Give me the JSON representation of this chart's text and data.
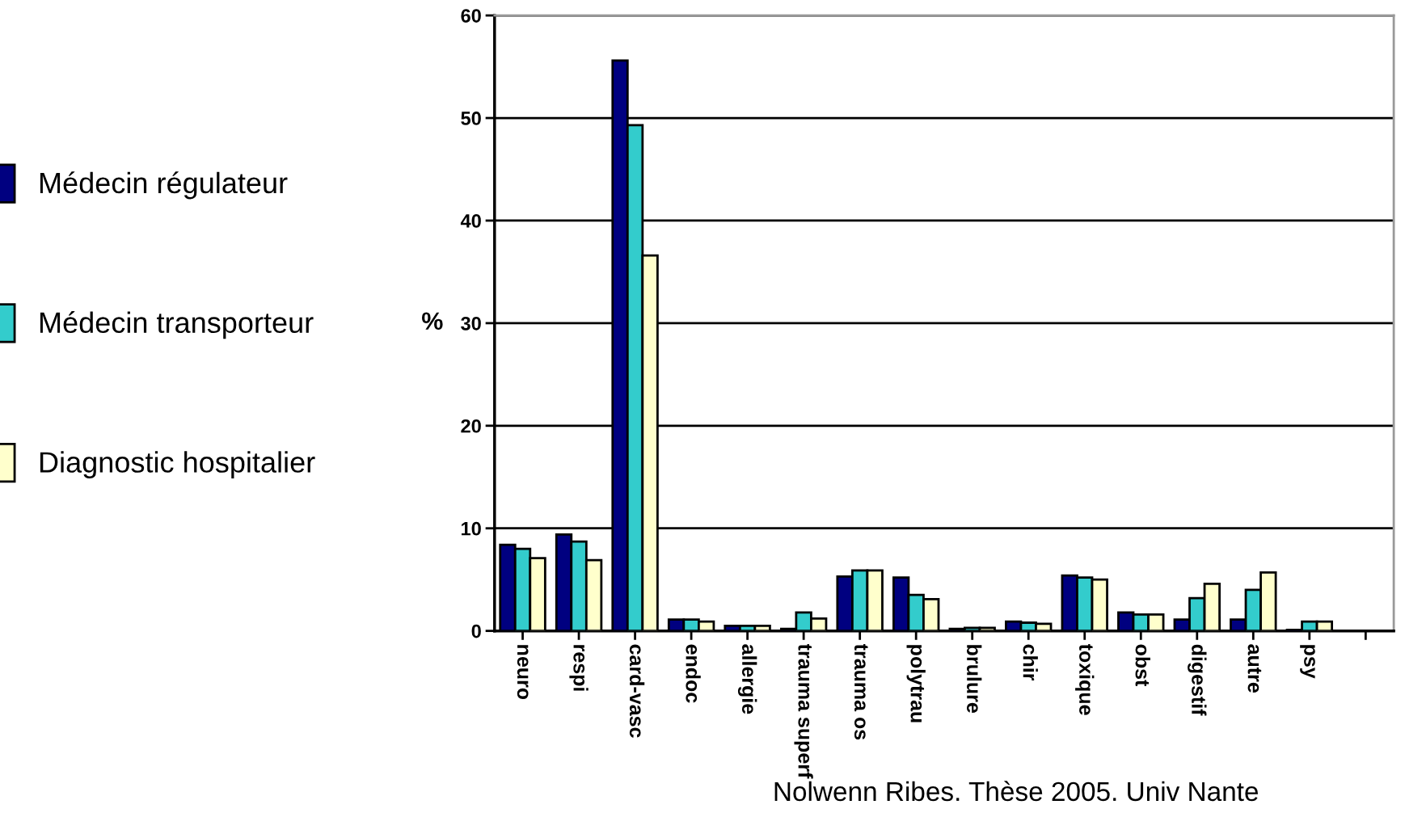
{
  "chart_data": {
    "type": "bar",
    "ylabel": "%",
    "categories": [
      "neuro",
      "respi",
      "card-vasc",
      "endoc",
      "allergie",
      "trauma superf",
      "trauma os",
      "polytrau",
      "brulure",
      "chir",
      "toxique",
      "obst",
      "digestif",
      "autre",
      "psy",
      null
    ],
    "series": [
      {
        "name": "Médecin régulateur",
        "color": "#000080",
        "values": [
          8.4,
          9.4,
          55.6,
          1.1,
          0.5,
          0.2,
          5.3,
          5.2,
          0.2,
          0.9,
          5.4,
          1.8,
          1.1,
          1.1,
          0.1,
          null
        ]
      },
      {
        "name": "Médecin transporteur",
        "color": "#33cccc",
        "values": [
          8.0,
          8.7,
          49.3,
          1.1,
          0.5,
          1.8,
          5.9,
          3.5,
          0.3,
          0.8,
          5.2,
          1.6,
          3.2,
          4.0,
          0.9,
          null
        ]
      },
      {
        "name": "Diagnostic hospitalier",
        "color": "#ffffcc",
        "values": [
          7.1,
          6.9,
          36.6,
          0.9,
          0.5,
          1.2,
          5.9,
          3.1,
          0.3,
          0.7,
          5.0,
          1.6,
          4.6,
          5.7,
          0.9,
          null
        ]
      }
    ],
    "ylim": [
      0,
      60
    ],
    "yticks": [
      0,
      10,
      20,
      30,
      40,
      50,
      60
    ],
    "grid": "y",
    "legend": "left",
    "annotations": [
      "Nolwenn Ribes. Thèse 2005. Univ Nante"
    ]
  }
}
